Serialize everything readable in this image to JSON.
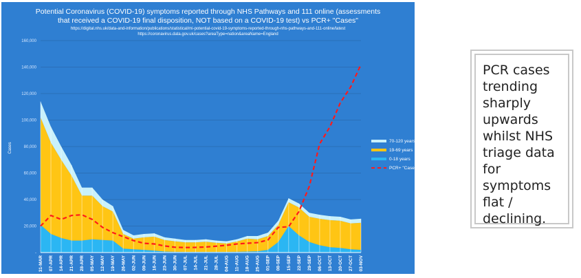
{
  "chart_data": {
    "type": "area",
    "stacked": true,
    "title": "Potential Coronavirus (COVID-19) symptoms reported through NHS Pathways and 111 online (assessments that received a COVID-19 final disposition, NOT based on a COVID-19 test) vs PCR+ \"Cases\"",
    "subtitle_lines": [
      "https://digital.nhs.uk/data-and-information/publications/statistical/mi-potential-covid-19-symptoms-reported-through-nhs-pathways-and-111-online/latest",
      "https://coronavirus.data.gov.uk/cases?areaType=nation&areaName=England"
    ],
    "ylabel": "Cases",
    "ylim": [
      0,
      160000
    ],
    "yticks": [
      "-",
      "20,000",
      "40,000",
      "60,000",
      "80,000",
      "100,000",
      "120,000",
      "140,000",
      "160,000"
    ],
    "grid": true,
    "legend_position": "right",
    "categories": [
      "31-MAR",
      "07-APR",
      "14-APR",
      "21-APR",
      "28-APR",
      "05-MAY",
      "12-MAY",
      "19-MAY",
      "26-MAY",
      "02-JUN",
      "09-JUN",
      "16-JUN",
      "23-JUN",
      "30-JUN",
      "07-JUL",
      "14-JUL",
      "21-JUL",
      "28-JUL",
      "04-AUG",
      "11-AUG",
      "18-AUG",
      "25-AUG",
      "01-SEP",
      "08-SEP",
      "15-SEP",
      "22-SEP",
      "29-SEP",
      "06-OCT",
      "13-OCT",
      "20-OCT",
      "27-OCT",
      "03-NOV"
    ],
    "series": [
      {
        "name": "0-18 years",
        "color": "#2bb6f3",
        "values": [
          21000,
          14000,
          11000,
          9000,
          9000,
          10000,
          9500,
          9000,
          3000,
          2500,
          2000,
          1500,
          800,
          600,
          500,
          500,
          500,
          500,
          500,
          600,
          800,
          1000,
          2000,
          8000,
          20000,
          13000,
          8000,
          5500,
          4000,
          3500,
          2500,
          2000
        ]
      },
      {
        "name": "19-69 years",
        "color": "#ffc514",
        "values": [
          81000,
          69000,
          59000,
          49000,
          34000,
          33000,
          25500,
          22000,
          11000,
          8000,
          9500,
          10500,
          8700,
          7900,
          7200,
          7200,
          7700,
          6900,
          6400,
          7800,
          9700,
          9000,
          10500,
          13000,
          18000,
          21000,
          19000,
          20000,
          20500,
          20500,
          19500,
          20500
        ]
      },
      {
        "name": "70-120 years",
        "color": "#c9f1fb",
        "values": [
          12000,
          12000,
          10000,
          8000,
          6000,
          6000,
          5000,
          4000,
          3000,
          2500,
          2500,
          2500,
          2000,
          2000,
          1800,
          1800,
          1800,
          1600,
          1600,
          1600,
          2000,
          2500,
          2500,
          3000,
          3000,
          3000,
          3000,
          3000,
          3000,
          3000,
          3000,
          3000
        ]
      }
    ],
    "line": {
      "name": "PCR+ \"Cases\"",
      "color": "#ff1a1a",
      "style": "dashed",
      "values": [
        20000,
        28000,
        25000,
        28000,
        28500,
        25000,
        19000,
        15000,
        12000,
        9000,
        7000,
        6500,
        5000,
        4000,
        3800,
        3900,
        4200,
        4800,
        5500,
        6500,
        7000,
        7500,
        9500,
        19000,
        19500,
        31000,
        50000,
        82000,
        95000,
        113000,
        125000,
        142000
      ]
    }
  },
  "note": "PCR cases trending sharply upwards whilst NHS triage data for symptoms flat / declining."
}
